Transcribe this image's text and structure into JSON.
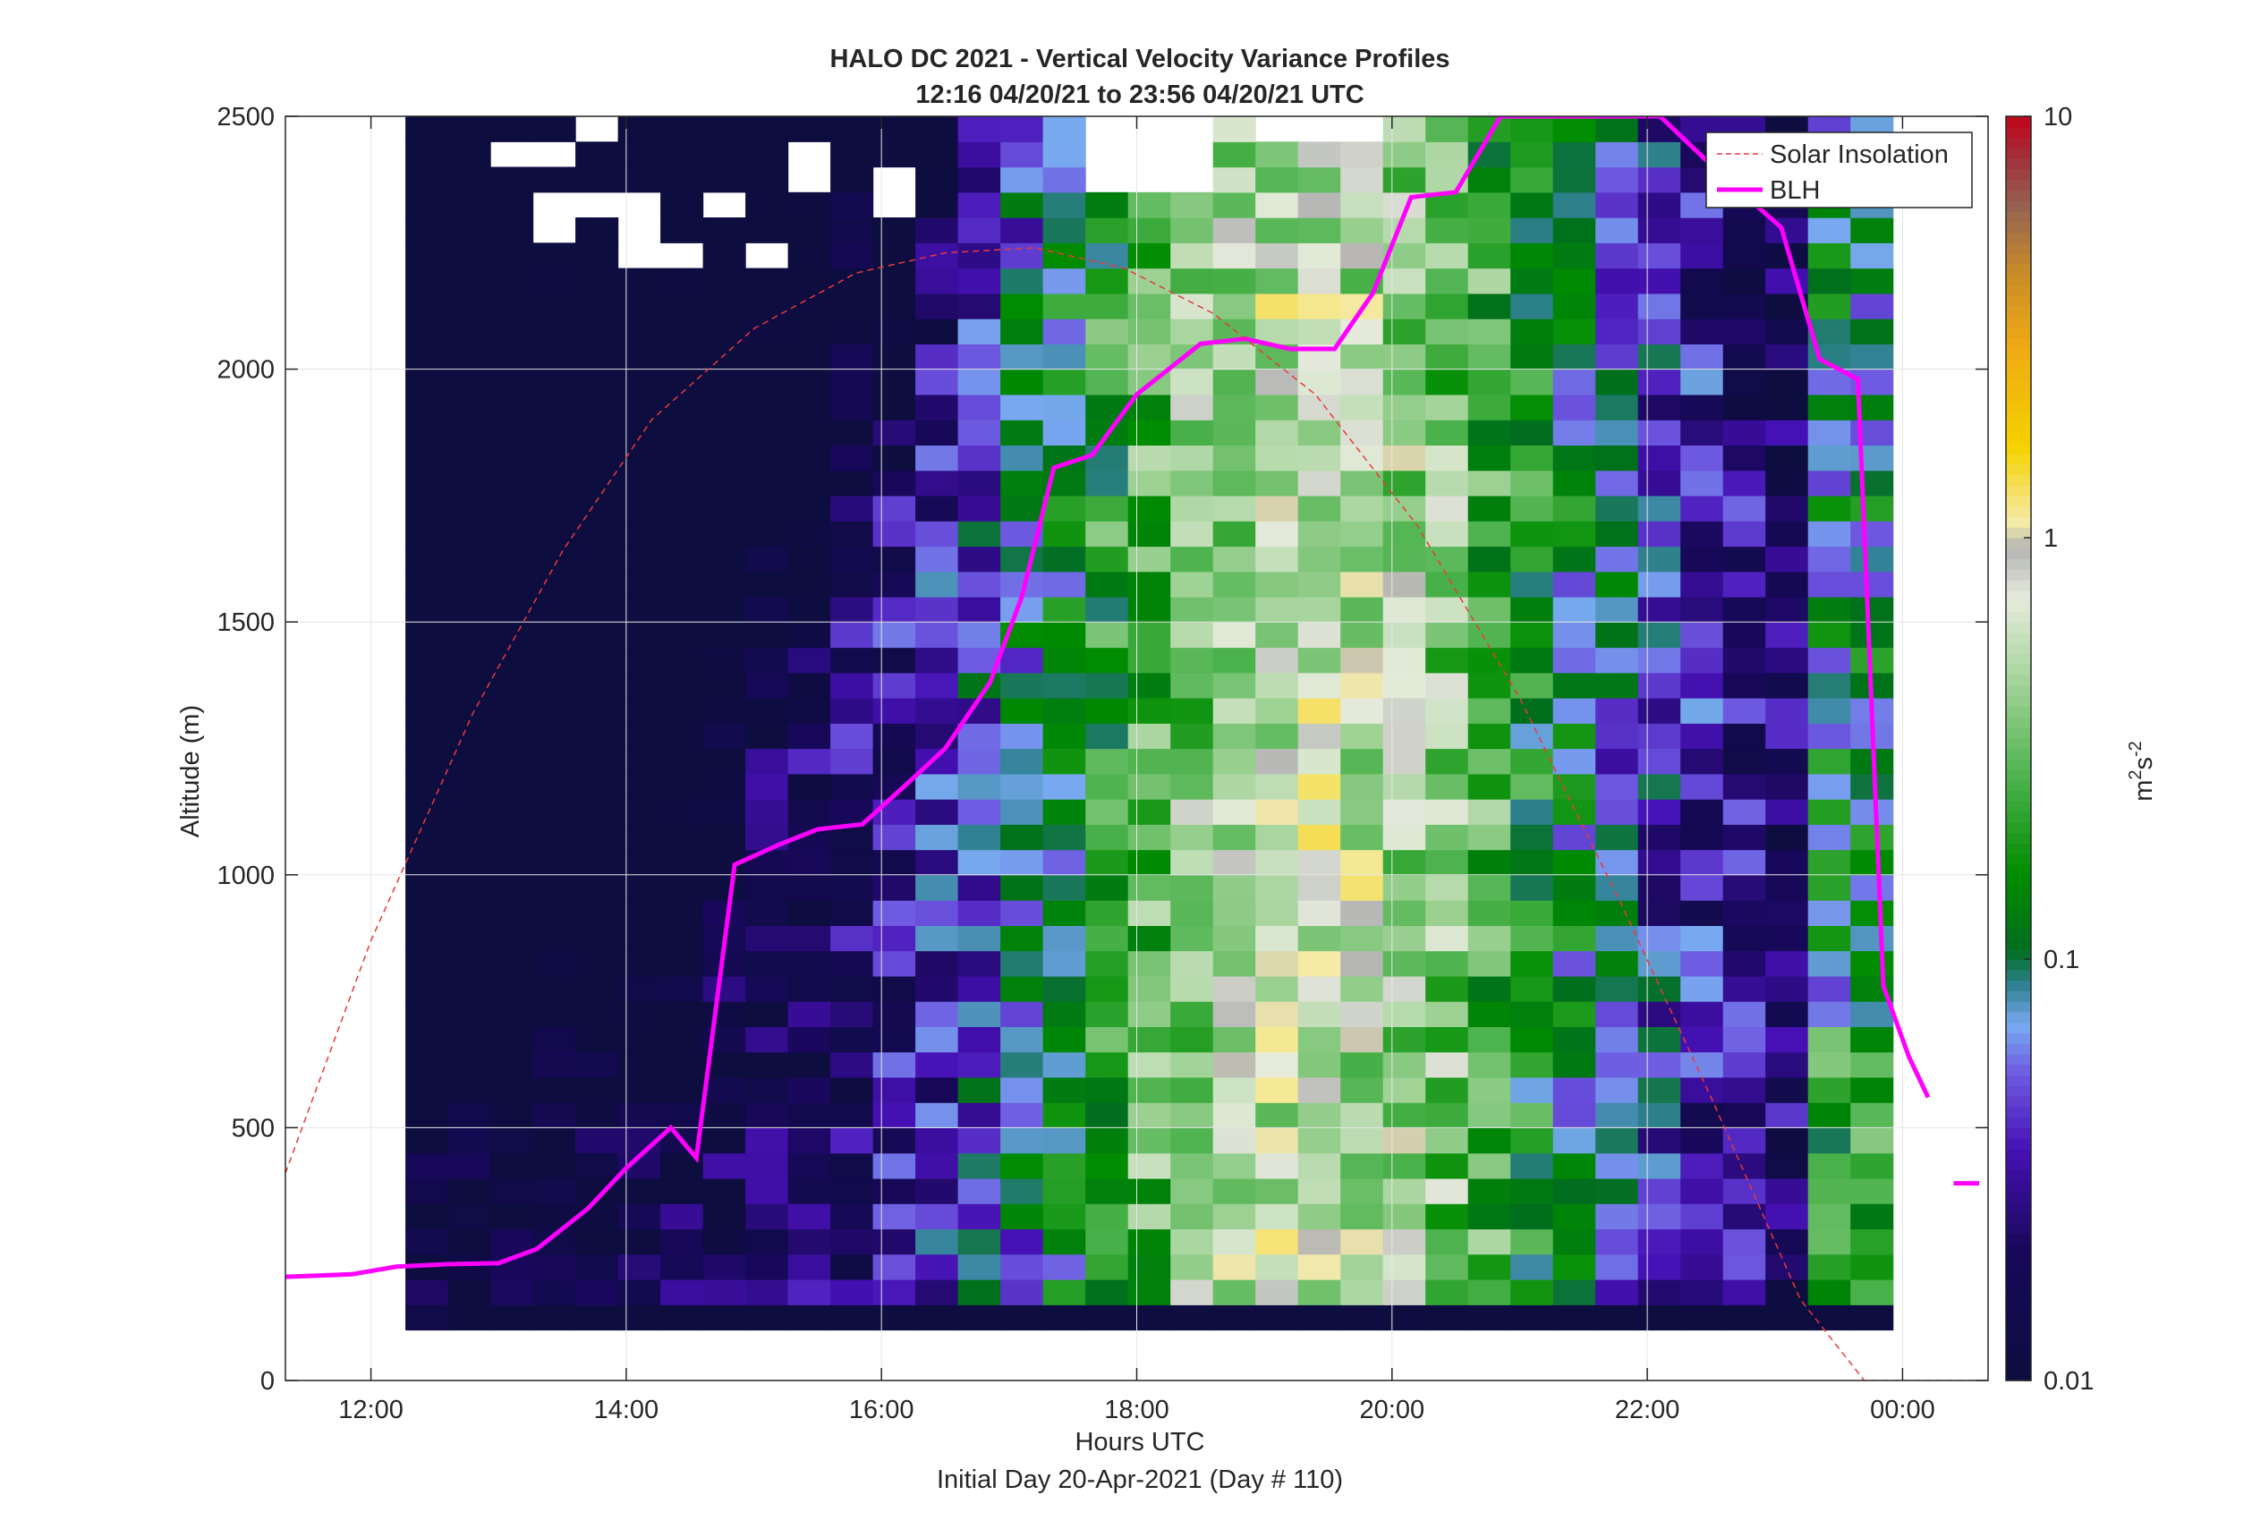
{
  "chart_data": {
    "type": "heatmap",
    "title": "HALO DC 2021 - Vertical Velocity Variance Profiles",
    "subtitle": "12:16 04/20/21 to 23:56 04/20/21  UTC",
    "xlabel": "Hours UTC",
    "xlabel2": "Initial Day 20-Apr-2021 (Day # 110)",
    "ylabel": "Altitude (m)",
    "colorbar_label_base": "m",
    "colorbar_label_sup1": "2",
    "colorbar_label_mid": "s",
    "colorbar_label_sup2": "-2",
    "x_ticks": [
      "12:00",
      "14:00",
      "16:00",
      "18:00",
      "20:00",
      "22:00",
      "00:00"
    ],
    "x_tick_hours": [
      12,
      14,
      16,
      18,
      20,
      22,
      24
    ],
    "xlim_hours": [
      11.33,
      24.67
    ],
    "y_ticks": [
      "0",
      "500",
      "1000",
      "1500",
      "2000",
      "2500"
    ],
    "y_tick_values": [
      0,
      500,
      1000,
      1500,
      2000,
      2500
    ],
    "ylim": [
      0,
      2500
    ],
    "colorbar_ticks": [
      "0.01",
      "0.1",
      "1",
      "10"
    ],
    "colorbar_tick_values": [
      0.01,
      0.1,
      1,
      10
    ],
    "color_scale": "log",
    "clim": [
      0.01,
      10
    ],
    "grid": true,
    "legend_position": "top-right",
    "legend": [
      "Solar Insolation",
      "BLH"
    ],
    "colors": {
      "blh": "#ff00ff",
      "solar": "#e8393c",
      "axis": "#262626",
      "grid": "#e6e6e6"
    },
    "heatmap": {
      "time_start_hour": 12.27,
      "time_step_hour": 0.333,
      "columns": 35,
      "alt_start": 100,
      "alt_step": 50,
      "rows": 48,
      "first_column_colorbar_note": "Each cell is a log10 variance value; null cells are blank."
    },
    "series": [
      {
        "name": "BLH",
        "x_hours": [
          11.33,
          11.85,
          12.2,
          12.6,
          13.0,
          13.3,
          13.7,
          14.0,
          14.35,
          14.55,
          14.85,
          15.2,
          15.5,
          15.85,
          16.2,
          16.5,
          16.85,
          17.1,
          17.35,
          17.65,
          18.0,
          18.5,
          18.85,
          19.2,
          19.55,
          19.85,
          20.15,
          20.5,
          20.85,
          21.3,
          21.6,
          21.95,
          22.1,
          22.6,
          23.05,
          23.35,
          23.65,
          23.85,
          24.05,
          24.2
        ],
        "values": [
          205,
          210,
          225,
          230,
          232,
          260,
          340,
          420,
          500,
          440,
          1020,
          1060,
          1090,
          1100,
          1180,
          1250,
          1380,
          1550,
          1805,
          1830,
          1950,
          2050,
          2060,
          2040,
          2040,
          2150,
          2340,
          2350,
          2500,
          2600,
          2700,
          2600,
          2500,
          2380,
          2280,
          2020,
          1980,
          780,
          640,
          560
        ]
      },
      {
        "name": "BLH (segment)",
        "x_hours": [
          24.4,
          24.6
        ],
        "values": [
          390,
          390
        ]
      },
      {
        "name": "Solar Insolation",
        "note": "Normalized daylight curve scaled to altitude axis",
        "x_hours": [
          11.33,
          12.0,
          12.8,
          13.5,
          14.2,
          15.0,
          15.8,
          16.5,
          17.2,
          17.9,
          18.6,
          19.4,
          20.2,
          21.0,
          21.8,
          22.5,
          23.2,
          23.7,
          24.0,
          24.67
        ],
        "values": [
          410,
          870,
          1320,
          1640,
          1900,
          2080,
          2190,
          2230,
          2240,
          2200,
          2110,
          1950,
          1690,
          1350,
          940,
          560,
          160,
          0,
          0,
          0
        ]
      }
    ]
  }
}
